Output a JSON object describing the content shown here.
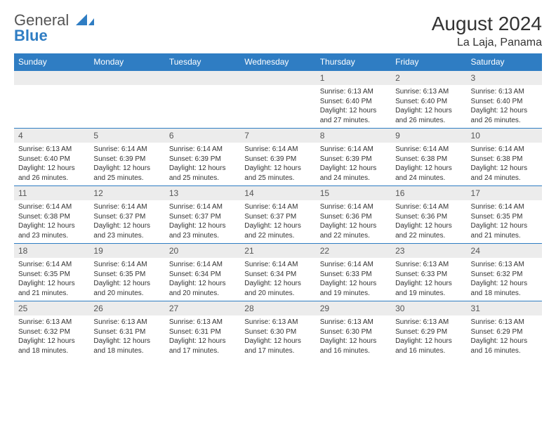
{
  "brand": {
    "text1": "General",
    "text2": "Blue",
    "icon_color": "#2f7dc3"
  },
  "header": {
    "title": "August 2024",
    "location": "La Laja, Panama"
  },
  "colors": {
    "accent": "#2f7dc3",
    "grid_bg": "#ececec",
    "text": "#333333"
  },
  "weekdays": [
    "Sunday",
    "Monday",
    "Tuesday",
    "Wednesday",
    "Thursday",
    "Friday",
    "Saturday"
  ],
  "weeks": [
    [
      {
        "empty": true
      },
      {
        "empty": true
      },
      {
        "empty": true
      },
      {
        "empty": true
      },
      {
        "n": "1",
        "sr": "6:13 AM",
        "ss": "6:40 PM",
        "dl": "12 hours and 27 minutes."
      },
      {
        "n": "2",
        "sr": "6:13 AM",
        "ss": "6:40 PM",
        "dl": "12 hours and 26 minutes."
      },
      {
        "n": "3",
        "sr": "6:13 AM",
        "ss": "6:40 PM",
        "dl": "12 hours and 26 minutes."
      }
    ],
    [
      {
        "n": "4",
        "sr": "6:13 AM",
        "ss": "6:40 PM",
        "dl": "12 hours and 26 minutes."
      },
      {
        "n": "5",
        "sr": "6:14 AM",
        "ss": "6:39 PM",
        "dl": "12 hours and 25 minutes."
      },
      {
        "n": "6",
        "sr": "6:14 AM",
        "ss": "6:39 PM",
        "dl": "12 hours and 25 minutes."
      },
      {
        "n": "7",
        "sr": "6:14 AM",
        "ss": "6:39 PM",
        "dl": "12 hours and 25 minutes."
      },
      {
        "n": "8",
        "sr": "6:14 AM",
        "ss": "6:39 PM",
        "dl": "12 hours and 24 minutes."
      },
      {
        "n": "9",
        "sr": "6:14 AM",
        "ss": "6:38 PM",
        "dl": "12 hours and 24 minutes."
      },
      {
        "n": "10",
        "sr": "6:14 AM",
        "ss": "6:38 PM",
        "dl": "12 hours and 24 minutes."
      }
    ],
    [
      {
        "n": "11",
        "sr": "6:14 AM",
        "ss": "6:38 PM",
        "dl": "12 hours and 23 minutes."
      },
      {
        "n": "12",
        "sr": "6:14 AM",
        "ss": "6:37 PM",
        "dl": "12 hours and 23 minutes."
      },
      {
        "n": "13",
        "sr": "6:14 AM",
        "ss": "6:37 PM",
        "dl": "12 hours and 23 minutes."
      },
      {
        "n": "14",
        "sr": "6:14 AM",
        "ss": "6:37 PM",
        "dl": "12 hours and 22 minutes."
      },
      {
        "n": "15",
        "sr": "6:14 AM",
        "ss": "6:36 PM",
        "dl": "12 hours and 22 minutes."
      },
      {
        "n": "16",
        "sr": "6:14 AM",
        "ss": "6:36 PM",
        "dl": "12 hours and 22 minutes."
      },
      {
        "n": "17",
        "sr": "6:14 AM",
        "ss": "6:35 PM",
        "dl": "12 hours and 21 minutes."
      }
    ],
    [
      {
        "n": "18",
        "sr": "6:14 AM",
        "ss": "6:35 PM",
        "dl": "12 hours and 21 minutes."
      },
      {
        "n": "19",
        "sr": "6:14 AM",
        "ss": "6:35 PM",
        "dl": "12 hours and 20 minutes."
      },
      {
        "n": "20",
        "sr": "6:14 AM",
        "ss": "6:34 PM",
        "dl": "12 hours and 20 minutes."
      },
      {
        "n": "21",
        "sr": "6:14 AM",
        "ss": "6:34 PM",
        "dl": "12 hours and 20 minutes."
      },
      {
        "n": "22",
        "sr": "6:14 AM",
        "ss": "6:33 PM",
        "dl": "12 hours and 19 minutes."
      },
      {
        "n": "23",
        "sr": "6:13 AM",
        "ss": "6:33 PM",
        "dl": "12 hours and 19 minutes."
      },
      {
        "n": "24",
        "sr": "6:13 AM",
        "ss": "6:32 PM",
        "dl": "12 hours and 18 minutes."
      }
    ],
    [
      {
        "n": "25",
        "sr": "6:13 AM",
        "ss": "6:32 PM",
        "dl": "12 hours and 18 minutes."
      },
      {
        "n": "26",
        "sr": "6:13 AM",
        "ss": "6:31 PM",
        "dl": "12 hours and 18 minutes."
      },
      {
        "n": "27",
        "sr": "6:13 AM",
        "ss": "6:31 PM",
        "dl": "12 hours and 17 minutes."
      },
      {
        "n": "28",
        "sr": "6:13 AM",
        "ss": "6:30 PM",
        "dl": "12 hours and 17 minutes."
      },
      {
        "n": "29",
        "sr": "6:13 AM",
        "ss": "6:30 PM",
        "dl": "12 hours and 16 minutes."
      },
      {
        "n": "30",
        "sr": "6:13 AM",
        "ss": "6:29 PM",
        "dl": "12 hours and 16 minutes."
      },
      {
        "n": "31",
        "sr": "6:13 AM",
        "ss": "6:29 PM",
        "dl": "12 hours and 16 minutes."
      }
    ]
  ],
  "labels": {
    "sunrise": "Sunrise:",
    "sunset": "Sunset:",
    "daylight": "Daylight:"
  }
}
